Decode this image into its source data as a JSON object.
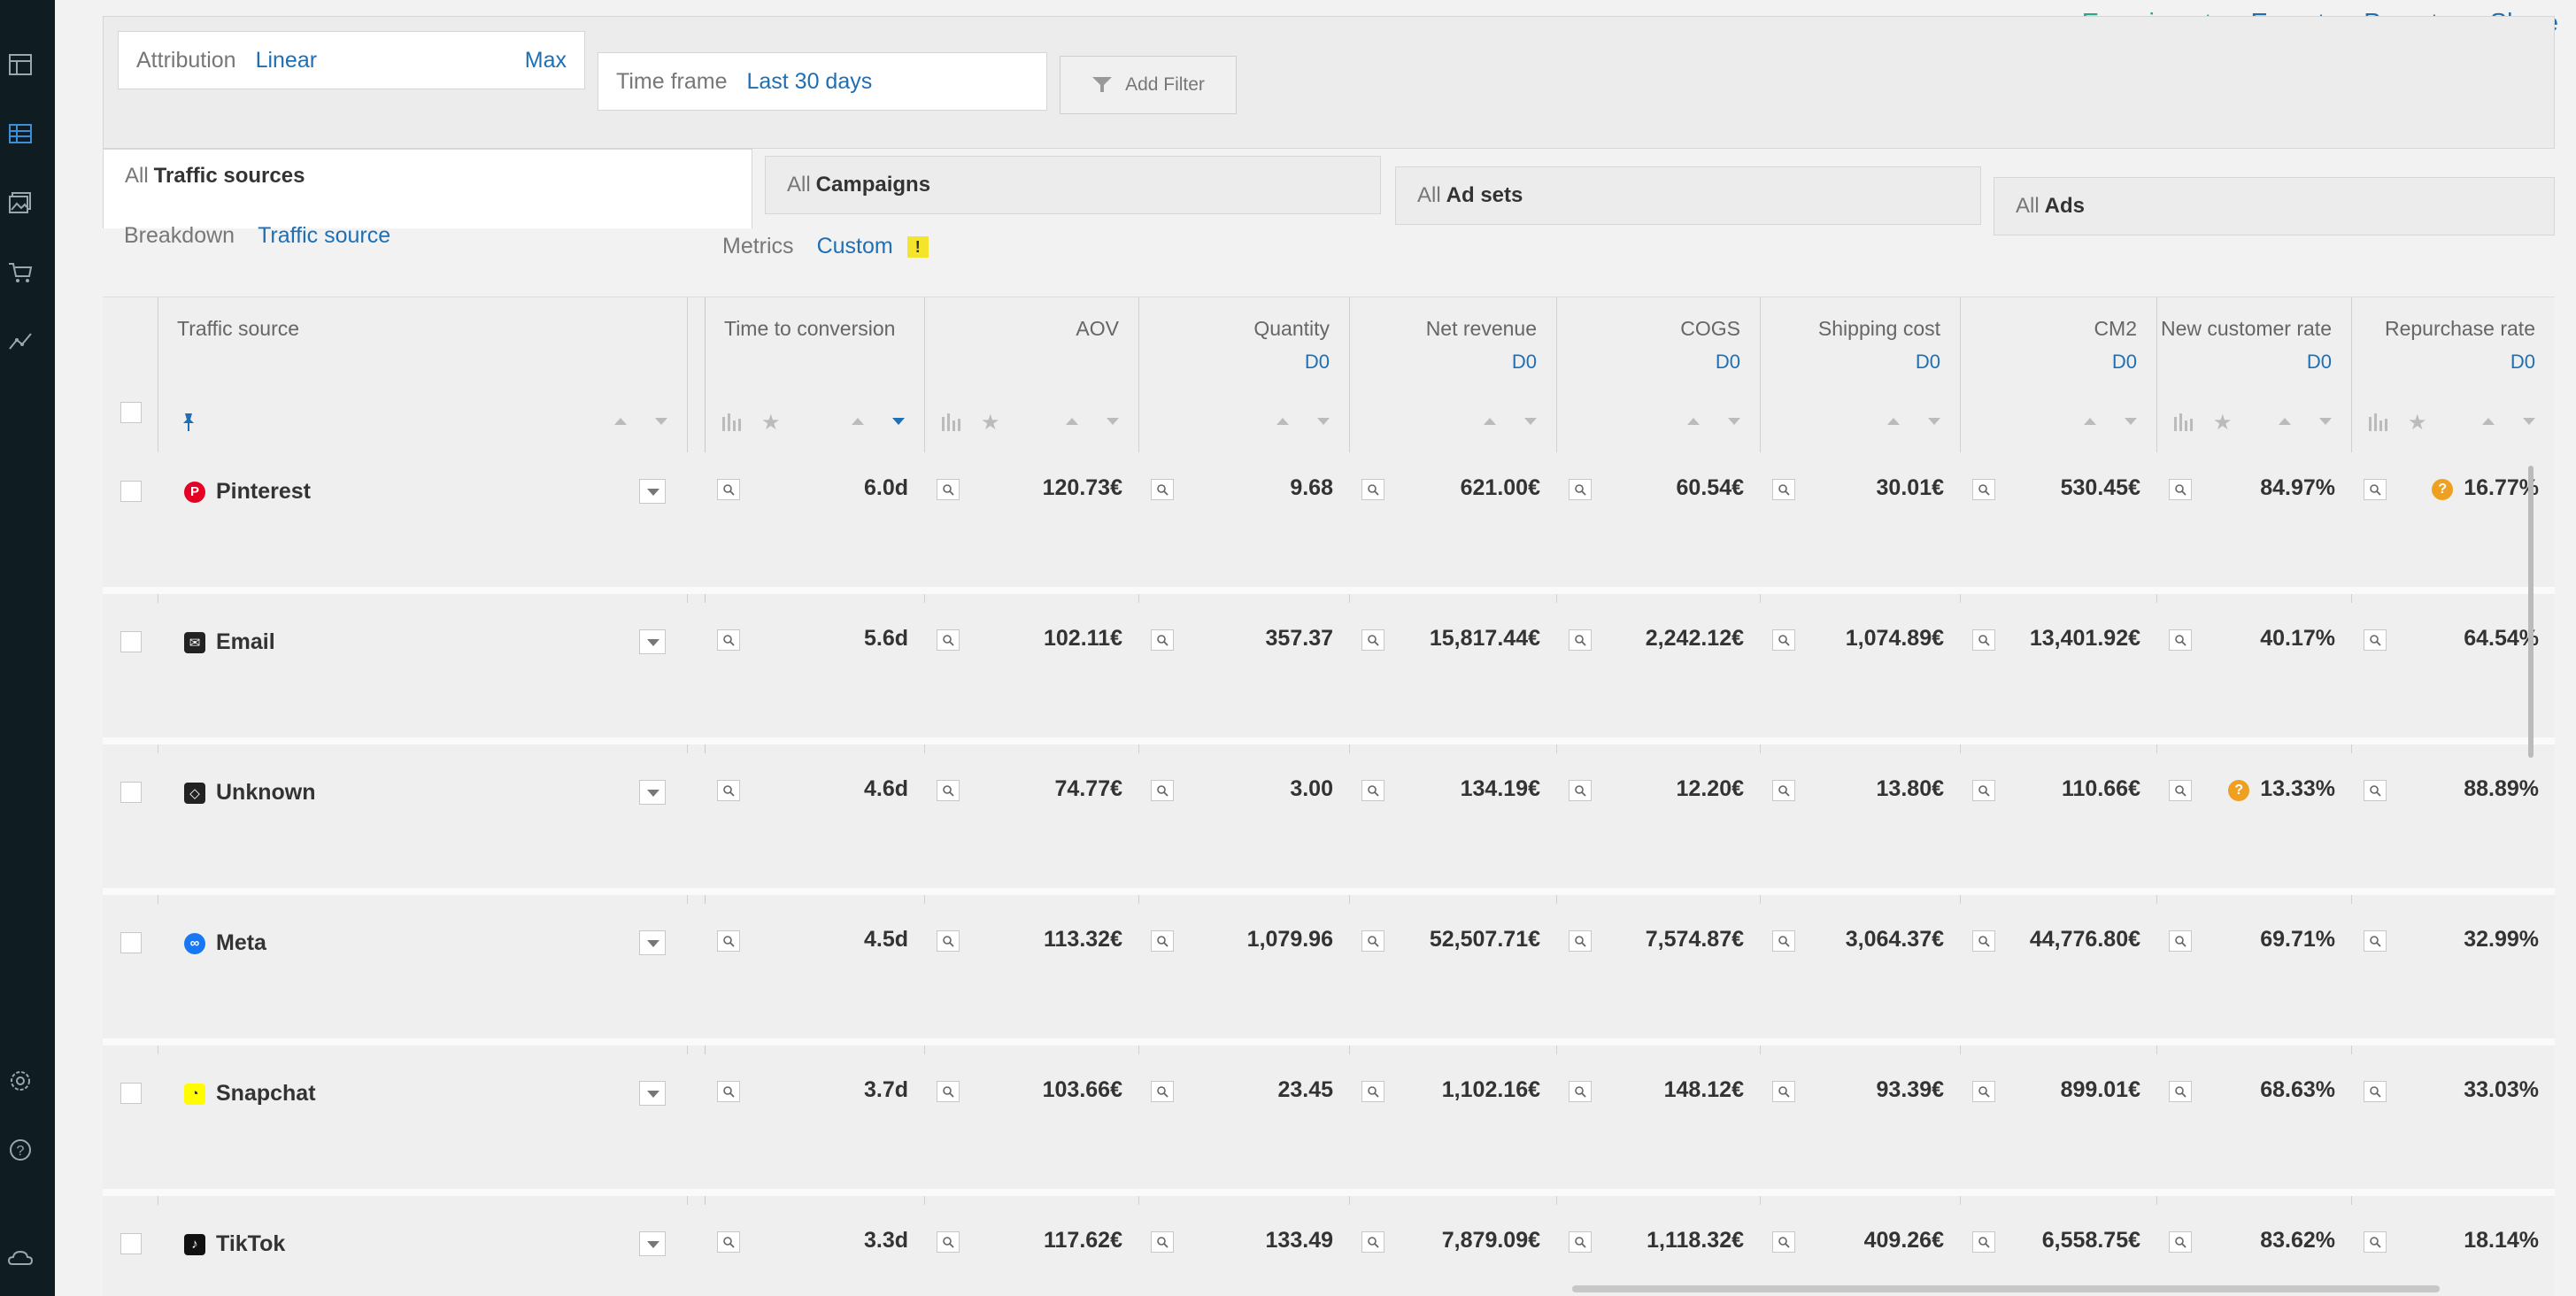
{
  "top_links": [
    "Experiment",
    "Export",
    "Presets",
    "Share"
  ],
  "filters": {
    "attribution_label": "Attribution",
    "attribution_value": "Linear",
    "attribution_extra": "Max",
    "timeframe_label": "Time frame",
    "timeframe_value": "Last 30 days",
    "add_filter": "Add Filter"
  },
  "levels": [
    {
      "prefix": "All",
      "name": "Traffic sources"
    },
    {
      "prefix": "All",
      "name": "Campaigns"
    },
    {
      "prefix": "All",
      "name": "Ad sets"
    },
    {
      "prefix": "All",
      "name": "Ads"
    }
  ],
  "breakdown": {
    "label": "Breakdown",
    "value": "Traffic source"
  },
  "metrics": {
    "label": "Metrics",
    "value": "Custom",
    "flag": "!"
  },
  "columns": {
    "source": "Traffic source",
    "time_to_conversion": "Time to conversion",
    "aov": "AOV",
    "quantity": "Quantity",
    "net_revenue": "Net revenue",
    "cogs": "COGS",
    "shipping_cost": "Shipping cost",
    "cm2": "CM2",
    "new_customer_rate": "New customer rate",
    "repurchase_rate": "Repurchase rate",
    "d0": "D0"
  },
  "rows": [
    {
      "source": "Pinterest",
      "ttc": "6.0d",
      "aov": "120.73€",
      "qty": "9.68",
      "rev": "621.00€",
      "cogs": "60.54€",
      "ship": "30.01€",
      "cm2": "530.45€",
      "ncr": "84.97%",
      "rr": "16.77%"
    },
    {
      "source": "Email",
      "ttc": "5.6d",
      "aov": "102.11€",
      "qty": "357.37",
      "rev": "15,817.44€",
      "cogs": "2,242.12€",
      "ship": "1,074.89€",
      "cm2": "13,401.92€",
      "ncr": "40.17%",
      "rr": "64.54%"
    },
    {
      "source": "Unknown",
      "ttc": "4.6d",
      "aov": "74.77€",
      "qty": "3.00",
      "rev": "134.19€",
      "cogs": "12.20€",
      "ship": "13.80€",
      "cm2": "110.66€",
      "ncr": "13.33%",
      "rr": "88.89%"
    },
    {
      "source": "Meta",
      "ttc": "4.5d",
      "aov": "113.32€",
      "qty": "1,079.96",
      "rev": "52,507.71€",
      "cogs": "7,574.87€",
      "ship": "3,064.37€",
      "cm2": "44,776.80€",
      "ncr": "69.71%",
      "rr": "32.99%"
    },
    {
      "source": "Snapchat",
      "ttc": "3.7d",
      "aov": "103.66€",
      "qty": "23.45",
      "rev": "1,102.16€",
      "cogs": "148.12€",
      "ship": "93.39€",
      "cm2": "899.01€",
      "ncr": "68.63%",
      "rr": "33.03%"
    },
    {
      "source": "TikTok",
      "ttc": "3.3d",
      "aov": "117.62€",
      "qty": "133.49",
      "rev": "7,879.09€",
      "cogs": "1,118.32€",
      "ship": "409.26€",
      "cm2": "6,558.75€",
      "ncr": "83.62%",
      "rr": "18.14%"
    }
  ],
  "warning_glyph": "?"
}
